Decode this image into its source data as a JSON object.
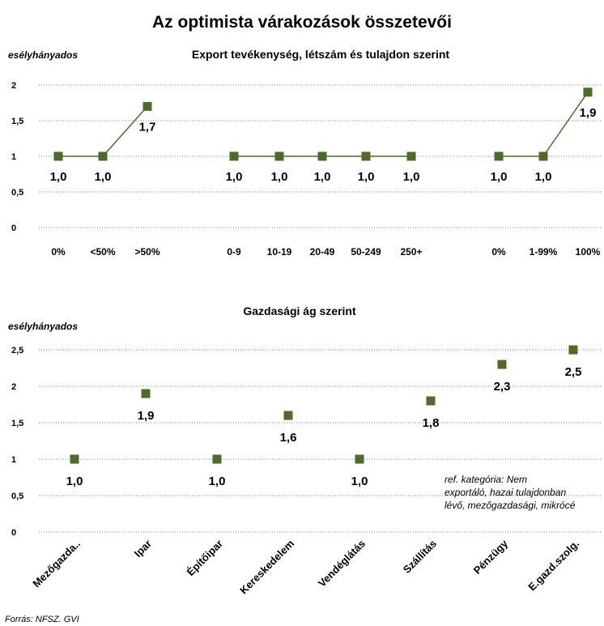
{
  "title": "Az optimista várakozások összetevői",
  "source": "Forrás: NFSZ. GVI",
  "colors": {
    "marker": "#4e6b27",
    "line": "#4e6b27",
    "grid": "#808080"
  },
  "chart_data": [
    {
      "type": "line",
      "subtitle": "Export tevékenység, létszám és tulajdon szerint",
      "ylabel": "esélyhányados",
      "ylim": [
        0,
        2
      ],
      "yticks": [
        "0",
        "0,5",
        "1",
        "1,5",
        "2"
      ],
      "grid": true,
      "series": [
        {
          "categories": [
            "0%",
            "<50%",
            ">50%"
          ],
          "values": [
            1.0,
            1.0,
            1.7
          ],
          "labels": [
            "1,0",
            "1,0",
            "1,7"
          ]
        },
        {
          "categories": [
            "0-9",
            "10-19",
            "20-49",
            "50-249",
            "250+"
          ],
          "values": [
            1.0,
            1.0,
            1.0,
            1.0,
            1.0
          ],
          "labels": [
            "1,0",
            "1,0",
            "1,0",
            "1,0",
            "1,0"
          ]
        },
        {
          "categories": [
            "0%",
            "1-99%",
            "100%"
          ],
          "values": [
            1.0,
            1.0,
            1.9
          ],
          "labels": [
            "1,0",
            "1,0",
            "1,9"
          ]
        }
      ]
    },
    {
      "type": "scatter",
      "subtitle": "Gazdasági ág szerint",
      "ylabel": "esélyhányados",
      "ylim": [
        0,
        2.5
      ],
      "yticks": [
        "0",
        "0,5",
        "1",
        "1,5",
        "2",
        "2,5"
      ],
      "grid": true,
      "categories": [
        "Mezőgazda..",
        "Ipar",
        "Építőipar",
        "Kereskedelem",
        "Vendéglátás",
        "Szállítás",
        "Pénzügy",
        "E.gazd.szolg."
      ],
      "values": [
        1.0,
        1.9,
        1.0,
        1.6,
        1.0,
        1.8,
        2.3,
        2.5
      ],
      "labels": [
        "1,0",
        "1,9",
        "1,0",
        "1,6",
        "1,0",
        "1,8",
        "2,3",
        "2,5"
      ],
      "note": [
        "ref. kategória: Nem",
        "exportáló, hazai tulajdonban",
        "lévő, mezőgazdasági,  mikrócé"
      ]
    }
  ]
}
